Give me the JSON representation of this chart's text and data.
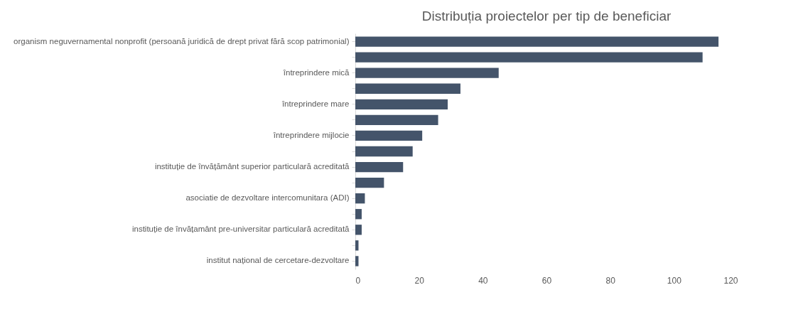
{
  "chart_data": {
    "type": "bar",
    "orientation": "horizontal",
    "title": "Distribuția proiectelor per tip de beneficiar",
    "categories": [
      "organism neguvernamental nonprofit (persoană juridică de drept privat fără scop patrimonial)",
      null,
      "întreprindere mică",
      null,
      "întreprindere mare",
      null,
      "întreprindere mijlocie",
      null,
      "instituție de învățământ superior particulară acreditată",
      null,
      "asociatie de dezvoltare intercomunitara (ADI)",
      null,
      "instituție de învățamânt pre-universitar particulară acreditată",
      null,
      "institut național de cercetare-dezvoltare"
    ],
    "values": [
      114,
      109,
      45,
      33,
      29,
      26,
      21,
      18,
      15,
      9,
      3,
      2,
      2,
      1,
      1
    ],
    "color": "#44546a",
    "xlim": [
      0,
      120
    ],
    "xticks": [
      0,
      20,
      40,
      60,
      80,
      100,
      120
    ],
    "grid": false
  }
}
